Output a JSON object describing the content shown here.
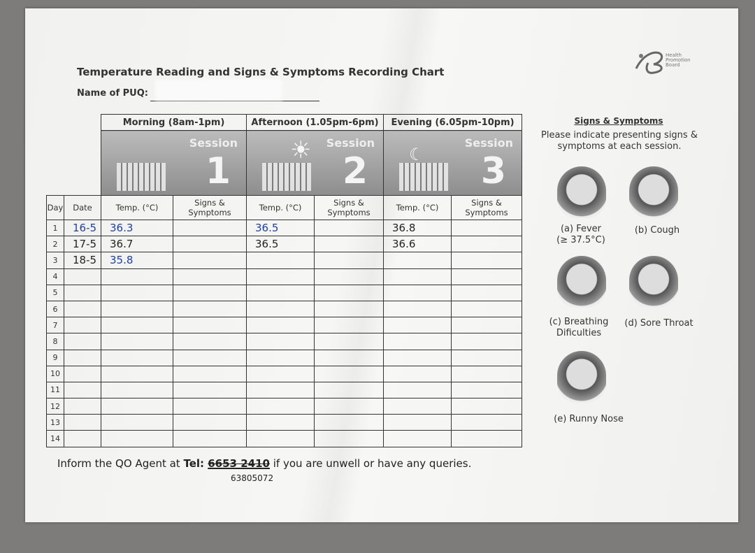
{
  "header": {
    "title": "Temperature Reading and Signs & Symptoms Recording Chart",
    "name_label": "Name of PUQ:",
    "logo_text": "Health Promotion Board"
  },
  "table": {
    "sessions": [
      {
        "time": "Morning (8am-1pm)",
        "label": "Session",
        "number": "1"
      },
      {
        "time": "Afternoon (1.05pm-6pm)",
        "label": "Session",
        "number": "2"
      },
      {
        "time": "Evening (6.05pm-10pm)",
        "label": "Session",
        "number": "3"
      }
    ],
    "columns": [
      "Day",
      "Date",
      "Temp. (°C)",
      "Signs & Symptoms",
      "Temp. (°C)",
      "Signs & Symptoms",
      "Temp. (°C)",
      "Signs & Symptoms"
    ],
    "rows": [
      [
        "1",
        "16-5",
        "36.3",
        "",
        "36.5",
        "",
        "36.8",
        ""
      ],
      [
        "2",
        "17-5",
        "36.7",
        "",
        "36.5",
        "",
        "36.6",
        ""
      ],
      [
        "3",
        "18-5",
        "35.8",
        "",
        "",
        "",
        "",
        ""
      ],
      [
        "4",
        "",
        "",
        "",
        "",
        "",
        "",
        ""
      ],
      [
        "5",
        "",
        "",
        "",
        "",
        "",
        "",
        ""
      ],
      [
        "6",
        "",
        "",
        "",
        "",
        "",
        "",
        ""
      ],
      [
        "7",
        "",
        "",
        "",
        "",
        "",
        "",
        ""
      ],
      [
        "8",
        "",
        "",
        "",
        "",
        "",
        "",
        ""
      ],
      [
        "9",
        "",
        "",
        "",
        "",
        "",
        "",
        ""
      ],
      [
        "10",
        "",
        "",
        "",
        "",
        "",
        "",
        ""
      ],
      [
        "11",
        "",
        "",
        "",
        "",
        "",
        "",
        ""
      ],
      [
        "12",
        "",
        "",
        "",
        "",
        "",
        "",
        ""
      ],
      [
        "13",
        "",
        "",
        "",
        "",
        "",
        "",
        ""
      ],
      [
        "14",
        "",
        "",
        "",
        "",
        "",
        "",
        ""
      ]
    ]
  },
  "side_panel": {
    "title": "Signs & Symptoms",
    "instruction": "Please indicate presenting signs & symptoms at each session.",
    "symptoms": [
      {
        "label": "(a) Fever",
        "note": "(≥ 37.5°C)"
      },
      {
        "label": "(b) Cough",
        "note": ""
      },
      {
        "label": "(c) Breathing",
        "note": "Dificulties"
      },
      {
        "label": "(d) Sore Throat",
        "note": ""
      },
      {
        "label": "(e) Runny Nose",
        "note": ""
      }
    ]
  },
  "footer": {
    "prefix": "Inform the QO Agent at ",
    "tel_label": "Tel: ",
    "tel_number": "6653 2410",
    "suffix": " if you are unwell or have any queries.",
    "handwritten_number": "63805072"
  }
}
